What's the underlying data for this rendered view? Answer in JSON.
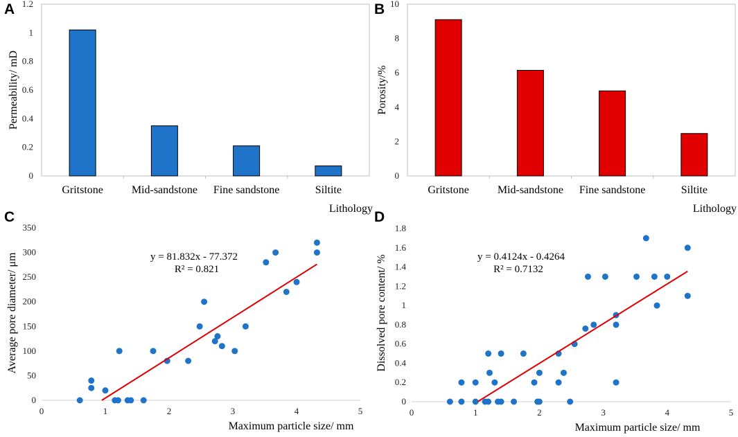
{
  "chart_data": [
    {
      "id": "A",
      "type": "bar",
      "panel_label": "A",
      "categories": [
        "Gritstone",
        "Mid-sandstone",
        "Fine sandstone",
        "Siltite"
      ],
      "values": [
        1.02,
        0.35,
        0.21,
        0.07
      ],
      "xlabel": "Lithology",
      "ylabel": "Permeability/ mD",
      "ylim": [
        0,
        1.2
      ],
      "yticks": [
        0,
        0.2,
        0.4,
        0.6,
        0.8,
        1,
        1.2
      ],
      "bar_color": "#1f73c8"
    },
    {
      "id": "B",
      "type": "bar",
      "panel_label": "B",
      "categories": [
        "Gritstone",
        "Mid-sandstone",
        "Fine sandstone",
        "Siltite"
      ],
      "values": [
        9.1,
        6.15,
        4.95,
        2.47
      ],
      "xlabel": "Lithology",
      "ylabel": "Porosity/%",
      "ylim": [
        0,
        10
      ],
      "yticks": [
        0,
        2,
        4,
        6,
        8,
        10
      ],
      "bar_color": "#e00000"
    },
    {
      "id": "C",
      "type": "scatter",
      "panel_label": "C",
      "xlabel": "Maximum particle size/ mm",
      "ylabel": "Average pore diameter/ μm",
      "xlim": [
        0,
        5
      ],
      "ylim": [
        0,
        350
      ],
      "xticks": [
        0,
        1,
        2,
        3,
        4,
        5
      ],
      "yticks": [
        0,
        50,
        100,
        150,
        200,
        250,
        300,
        350
      ],
      "points": [
        [
          0.6,
          0
        ],
        [
          0.78,
          40
        ],
        [
          0.78,
          25
        ],
        [
          1.0,
          20
        ],
        [
          1.15,
          0
        ],
        [
          1.2,
          0
        ],
        [
          1.22,
          100
        ],
        [
          1.35,
          0
        ],
        [
          1.4,
          0
        ],
        [
          1.6,
          0
        ],
        [
          1.75,
          100
        ],
        [
          1.97,
          80
        ],
        [
          2.3,
          80
        ],
        [
          2.48,
          150
        ],
        [
          2.55,
          200
        ],
        [
          2.72,
          120
        ],
        [
          2.76,
          130
        ],
        [
          2.83,
          110
        ],
        [
          3.03,
          100
        ],
        [
          3.2,
          150
        ],
        [
          3.52,
          280
        ],
        [
          3.67,
          300
        ],
        [
          3.84,
          220
        ],
        [
          4.0,
          240
        ],
        [
          4.32,
          320
        ],
        [
          4.32,
          300
        ]
      ],
      "trendline": {
        "slope": 81.832,
        "intercept": -77.372,
        "x_range": [
          0.945,
          4.32
        ]
      },
      "equation": "y = 81.832x - 77.372",
      "r2": "R² = 0.821",
      "point_color": "#1f73c8",
      "line_color": "#e00000"
    },
    {
      "id": "D",
      "type": "scatter",
      "panel_label": "D",
      "xlabel": "Maximum particle size/ mm",
      "ylabel": "Dissolved pore content/ %",
      "xlim": [
        0,
        5
      ],
      "ylim": [
        0,
        1.8
      ],
      "xticks": [
        0,
        1,
        2,
        3,
        4,
        5
      ],
      "yticks": [
        0,
        0.2,
        0.4,
        0.6,
        0.8,
        1,
        1.2,
        1.4,
        1.6,
        1.8
      ],
      "points": [
        [
          0.6,
          0
        ],
        [
          0.78,
          0
        ],
        [
          0.78,
          0.2
        ],
        [
          1.0,
          0
        ],
        [
          1.0,
          0.2
        ],
        [
          1.15,
          0
        ],
        [
          1.2,
          0
        ],
        [
          1.2,
          0.5
        ],
        [
          1.22,
          0.3
        ],
        [
          1.3,
          0.2
        ],
        [
          1.35,
          0
        ],
        [
          1.4,
          0
        ],
        [
          1.4,
          0.5
        ],
        [
          1.6,
          0
        ],
        [
          1.75,
          0.5
        ],
        [
          1.92,
          0.2
        ],
        [
          1.97,
          0
        ],
        [
          2.0,
          0
        ],
        [
          2.0,
          0.3
        ],
        [
          2.3,
          0.5
        ],
        [
          2.3,
          0.2
        ],
        [
          2.38,
          0.3
        ],
        [
          2.48,
          0
        ],
        [
          2.55,
          0.6
        ],
        [
          2.72,
          0.76
        ],
        [
          2.76,
          1.3
        ],
        [
          2.85,
          0.8
        ],
        [
          3.03,
          1.3
        ],
        [
          3.2,
          0.9
        ],
        [
          3.2,
          0.8
        ],
        [
          3.2,
          0.2
        ],
        [
          3.52,
          1.3
        ],
        [
          3.67,
          1.7
        ],
        [
          3.8,
          1.3
        ],
        [
          3.84,
          1.0
        ],
        [
          4.0,
          1.3
        ],
        [
          4.32,
          1.6
        ],
        [
          4.32,
          1.1
        ]
      ],
      "trendline": {
        "slope": 0.4124,
        "intercept": -0.4264,
        "x_range": [
          1.034,
          4.32
        ]
      },
      "equation": "y = 0.4124x - 0.4264",
      "r2": "R² = 0.7132",
      "point_color": "#1f73c8",
      "line_color": "#e00000"
    }
  ]
}
